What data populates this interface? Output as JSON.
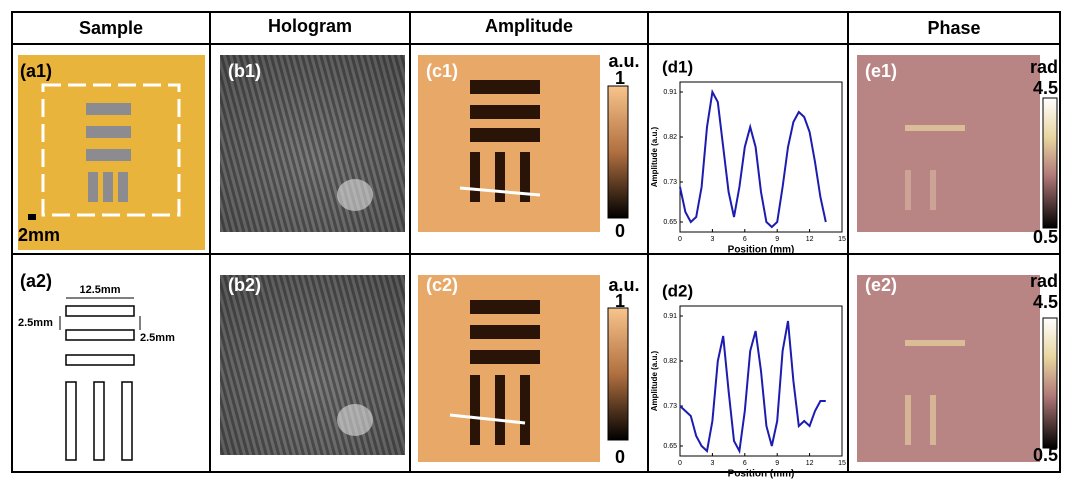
{
  "header": {
    "columns": [
      "Sample",
      "Hologram",
      "Amplitude",
      "Phase"
    ]
  },
  "panels": {
    "a1": "(a1)",
    "b1": "(b1)",
    "c1": "(c1)",
    "e1": "(e1)",
    "a2": "(a2)",
    "b2": "(b2)",
    "c2": "(c2)",
    "e2": "(e2)"
  },
  "scale_bar": "2mm",
  "schematic": {
    "width": "12.5mm",
    "bar_height": "2.5mm",
    "gap": "2.5mm"
  },
  "amplitude_colorbar": {
    "unit": "a.u.",
    "max": 1,
    "min": 0
  },
  "phase_colorbar": {
    "unit": "rad",
    "max": 4.5,
    "min": 0.5
  },
  "chart_data": [
    {
      "type": "line",
      "label": "(d1)",
      "x_label": "Position (mm)",
      "y_label": "Amplitude (a.u.)",
      "x": [
        0,
        0.5,
        1,
        1.5,
        2,
        2.5,
        3,
        3.5,
        4,
        4.5,
        5,
        5.5,
        6,
        6.5,
        7,
        7.5,
        8,
        8.5,
        9,
        9.5,
        10,
        10.5,
        11,
        11.5,
        12,
        12.5,
        13,
        13.5
      ],
      "series": [
        {
          "color": "#1c1cb0",
          "values": [
            0.72,
            0.67,
            0.65,
            0.66,
            0.72,
            0.84,
            0.91,
            0.89,
            0.8,
            0.71,
            0.66,
            0.72,
            0.8,
            0.84,
            0.8,
            0.71,
            0.65,
            0.64,
            0.65,
            0.72,
            0.8,
            0.85,
            0.87,
            0.86,
            0.83,
            0.77,
            0.7,
            0.65
          ]
        }
      ],
      "xlim": [
        0,
        15
      ],
      "xticks": [
        0,
        3,
        6,
        9,
        12,
        15
      ],
      "ylim": [
        0.63,
        0.93
      ],
      "yticks": [
        0.65,
        0.73,
        0.82,
        0.91
      ]
    },
    {
      "type": "line",
      "label": "(d2)",
      "x_label": "Position (mm)",
      "y_label": "Amplitude (a.u.)",
      "x": [
        0,
        0.5,
        1,
        1.5,
        2,
        2.5,
        3,
        3.5,
        4,
        4.5,
        5,
        5.5,
        6,
        6.5,
        7,
        7.5,
        8,
        8.5,
        9,
        9.5,
        10,
        10.5,
        11,
        11.5,
        12,
        12.5,
        13,
        13.5
      ],
      "series": [
        {
          "color": "#1c1cb0",
          "values": [
            0.73,
            0.72,
            0.71,
            0.67,
            0.65,
            0.64,
            0.7,
            0.82,
            0.87,
            0.76,
            0.66,
            0.64,
            0.72,
            0.84,
            0.88,
            0.8,
            0.69,
            0.65,
            0.7,
            0.84,
            0.9,
            0.78,
            0.69,
            0.7,
            0.69,
            0.72,
            0.74,
            0.74
          ]
        }
      ],
      "xlim": [
        0,
        15
      ],
      "xticks": [
        0,
        3,
        6,
        9,
        12,
        15
      ],
      "ylim": [
        0.63,
        0.93
      ],
      "yticks": [
        0.65,
        0.73,
        0.82,
        0.91
      ]
    }
  ]
}
